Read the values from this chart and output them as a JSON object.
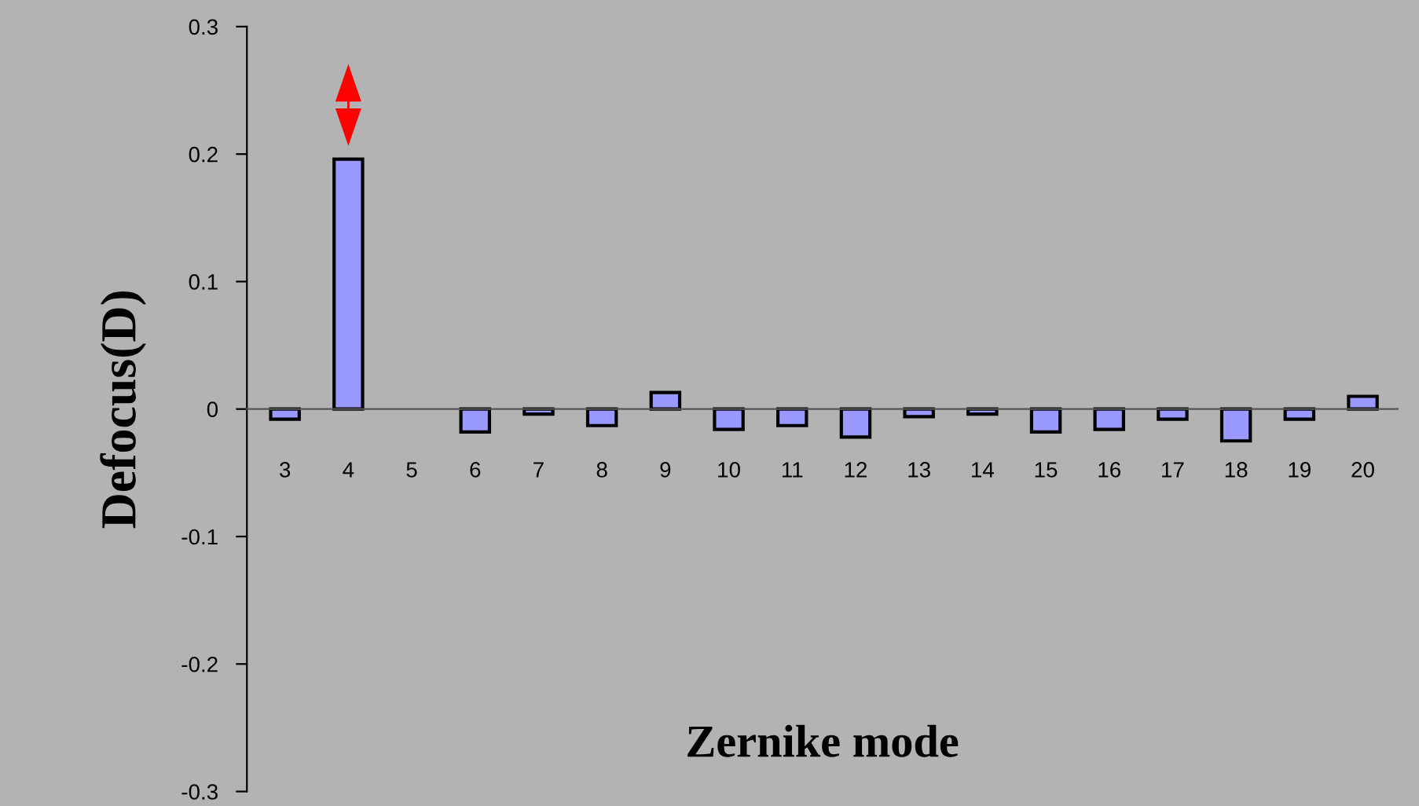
{
  "chart_data": {
    "type": "bar",
    "xlabel": "Zernike mode",
    "ylabel": "Defocus(D)",
    "categories": [
      "3",
      "4",
      "5",
      "6",
      "7",
      "8",
      "9",
      "10",
      "11",
      "12",
      "13",
      "14",
      "15",
      "16",
      "17",
      "18",
      "19",
      "20"
    ],
    "values": [
      -0.008,
      0.196,
      null,
      -0.018,
      -0.004,
      -0.013,
      0.013,
      -0.016,
      -0.013,
      -0.022,
      -0.006,
      -0.004,
      -0.018,
      -0.016,
      -0.008,
      -0.025,
      -0.008,
      0.01
    ],
    "color": "#9999ff",
    "ylim": [
      -0.3,
      0.3
    ],
    "yticks": [
      {
        "value": -0.3,
        "label": "-0.3"
      },
      {
        "value": -0.2,
        "label": "-0.2"
      },
      {
        "value": -0.1,
        "label": "-0.1"
      },
      0,
      0.1,
      0.2,
      0.3
    ],
    "grid": false,
    "legend": false
  }
}
